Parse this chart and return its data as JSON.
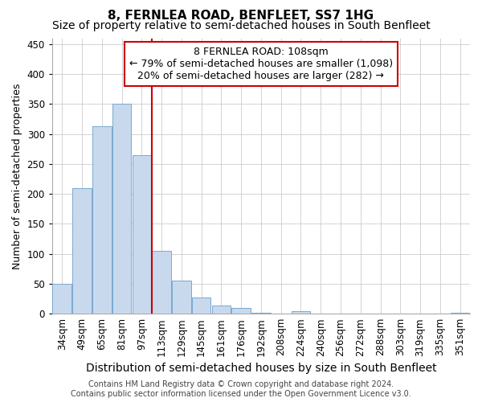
{
  "title": "8, FERNLEA ROAD, BENFLEET, SS7 1HG",
  "subtitle": "Size of property relative to semi-detached houses in South Benfleet",
  "xlabel": "Distribution of semi-detached houses by size in South Benfleet",
  "ylabel": "Number of semi-detached properties",
  "footer_line1": "Contains HM Land Registry data © Crown copyright and database right 2024.",
  "footer_line2": "Contains public sector information licensed under the Open Government Licence v3.0.",
  "categories": [
    "34sqm",
    "49sqm",
    "65sqm",
    "81sqm",
    "97sqm",
    "113sqm",
    "129sqm",
    "145sqm",
    "161sqm",
    "176sqm",
    "192sqm",
    "208sqm",
    "224sqm",
    "240sqm",
    "256sqm",
    "272sqm",
    "288sqm",
    "303sqm",
    "319sqm",
    "335sqm",
    "351sqm"
  ],
  "values": [
    50,
    210,
    313,
    350,
    265,
    105,
    55,
    27,
    14,
    10,
    1,
    0,
    4,
    0,
    0,
    0,
    0,
    0,
    0,
    0,
    2
  ],
  "bar_color": "#c8d9ee",
  "bar_edge_color": "#7aa8d0",
  "bar_width": 0.95,
  "vline_x_idx": 5,
  "vline_color": "#cc0000",
  "annotation_text": "8 FERNLEA ROAD: 108sqm\n← 79% of semi-detached houses are smaller (1,098)\n20% of semi-detached houses are larger (282) →",
  "annotation_box_color": "#ffffff",
  "annotation_box_edge": "#cc0000",
  "ylim": [
    0,
    460
  ],
  "yticks": [
    0,
    50,
    100,
    150,
    200,
    250,
    300,
    350,
    400,
    450
  ],
  "bg_color": "#ffffff",
  "plot_bg_color": "#ffffff",
  "grid_color": "#cccccc",
  "title_fontsize": 11,
  "subtitle_fontsize": 10,
  "ylabel_fontsize": 9,
  "xlabel_fontsize": 10,
  "tick_fontsize": 8.5,
  "annotation_fontsize": 9,
  "footer_fontsize": 7
}
